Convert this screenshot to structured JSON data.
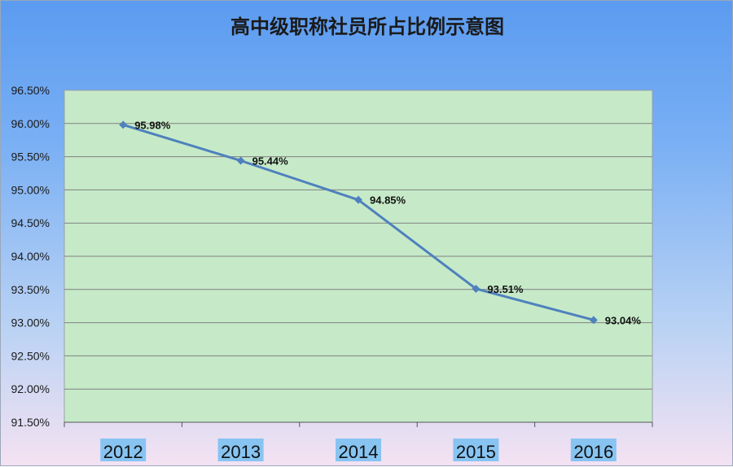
{
  "chart_data": {
    "type": "line",
    "title": "高中级职称社员所占比例示意图",
    "categories": [
      "2012",
      "2013",
      "2014",
      "2015",
      "2016"
    ],
    "series": [
      {
        "values": [
          95.98,
          95.44,
          94.85,
          93.51,
          93.04
        ],
        "data_labels": [
          "95.98%",
          "95.44%",
          "94.85%",
          "93.51%",
          "93.04%"
        ]
      }
    ],
    "y_ticks": [
      "96.50%",
      "96.00%",
      "95.50%",
      "95.00%",
      "94.50%",
      "94.00%",
      "93.50%",
      "93.00%",
      "92.50%",
      "92.00%",
      "91.50%"
    ],
    "ylim": [
      91.5,
      96.5
    ],
    "y_step": 0.5,
    "xlabel": "",
    "ylabel": "",
    "grid": true,
    "legend": "none",
    "colors": {
      "plot_background": "#c6eac8",
      "line": "#4f81bd",
      "marker": "#4f81bd",
      "gridline": "#808080",
      "x_tick_highlight": "#87c4f2"
    }
  }
}
